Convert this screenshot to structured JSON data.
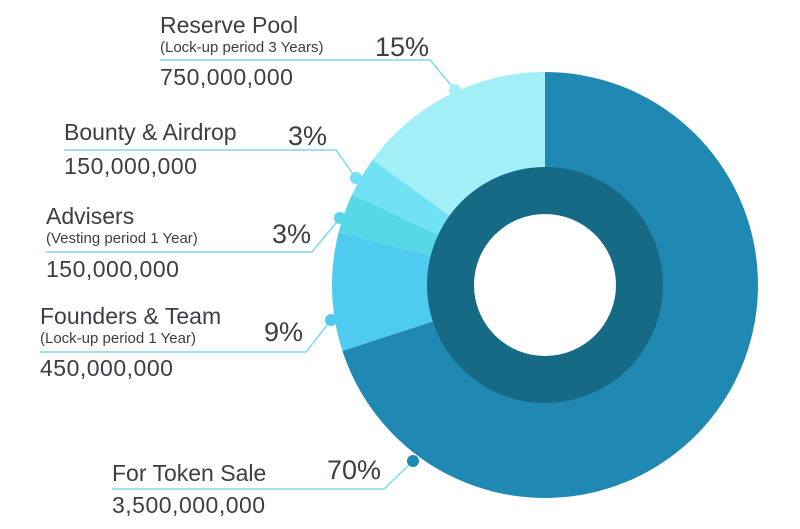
{
  "chart_data": {
    "type": "pie",
    "style": "donut",
    "slices": [
      {
        "name": "For Token Sale",
        "note": "",
        "percent": 70,
        "amount": "3,500,000,000",
        "color": "#1f88b3"
      },
      {
        "name": "Founders & Team",
        "note": "(Lock-up period 1 Year)",
        "percent": 9,
        "amount": "450,000,000",
        "color": "#4fcbef"
      },
      {
        "name": "Advisers",
        "note": "(Vesting period 1 Year)",
        "percent": 3,
        "amount": "150,000,000",
        "color": "#56d8e6"
      },
      {
        "name": "Bounty & Airdrop",
        "note": "",
        "percent": 3,
        "amount": "150,000,000",
        "color": "#71e2f6"
      },
      {
        "name": "Reserve Pool",
        "note": "(Lock-up period 3 Years)",
        "percent": 15,
        "amount": "750,000,000",
        "color": "#a3eff8"
      }
    ],
    "percent_labels": [
      "70%",
      "9%",
      "3%",
      "3%",
      "15%"
    ],
    "inner_ring_color": "#176a85",
    "leader_line_color": "#7fd9ee"
  }
}
